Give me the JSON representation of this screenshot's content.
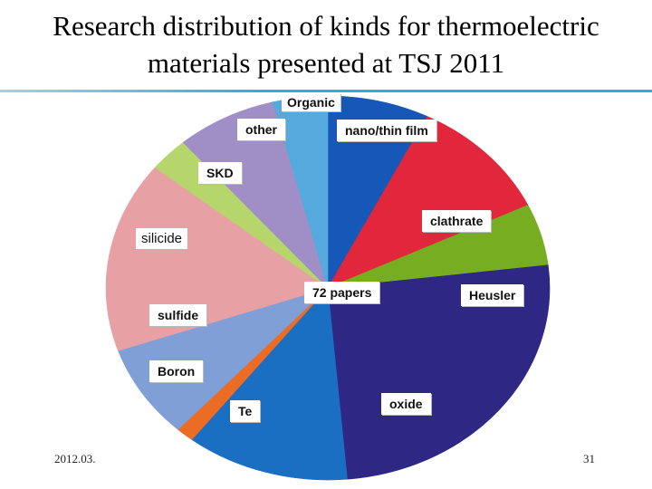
{
  "title_line1": "Research distribution of kinds for thermoelectric",
  "title_line2": "materials presented at TSJ 2011",
  "footer_left": "2012.03.",
  "page_number": "31",
  "chart_data": {
    "type": "pie",
    "center_label": "72 papers",
    "slices": [
      {
        "label": "nano/thin film",
        "value": 7.4,
        "color": "#1757b8"
      },
      {
        "label": "clathrate",
        "value": 10.5,
        "color": "#e2263b"
      },
      {
        "label": "Heusler",
        "value": 5.2,
        "color": "#77ad21"
      },
      {
        "label": "oxide",
        "value": 25.5,
        "color": "#2e2784"
      },
      {
        "label": "Te",
        "value": 11.9,
        "color": "#1b6fc3"
      },
      {
        "label": "Boron",
        "value": 1.3,
        "color": "#ec6c24"
      },
      {
        "label": "sulfide",
        "value": 7.9,
        "color": "#7f9fd6"
      },
      {
        "label": "silicide",
        "value": 16.1,
        "color": "#e7a1a4"
      },
      {
        "label": "SKD",
        "value": 2.9,
        "color": "#b6d66b"
      },
      {
        "label": "other",
        "value": 7.3,
        "color": "#a08ec6"
      },
      {
        "label": "Organic",
        "value": 4.0,
        "color": "#56a9dc"
      }
    ]
  }
}
